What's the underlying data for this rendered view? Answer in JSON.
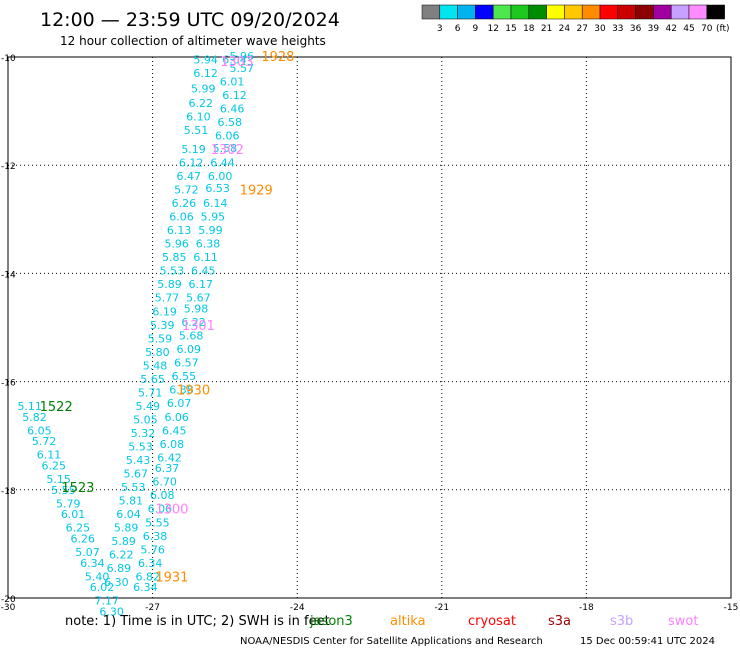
{
  "header": {
    "title": "12:00 — 23:59 UTC 09/20/2024",
    "subtitle": "12 hour collection of altimeter wave heights"
  },
  "legend_scale": {
    "labels": [
      "3",
      "6",
      "9",
      "12",
      "15",
      "18",
      "21",
      "24",
      "27",
      "30",
      "33",
      "36",
      "39",
      "42",
      "45",
      "70"
    ],
    "unit": "(ft)",
    "colors": [
      "#808080",
      "#00e5ee",
      "#00b2ee",
      "#0000ff",
      "#4ee84e",
      "#1ec81e",
      "#008c00",
      "#ffff00",
      "#ffc800",
      "#ff8c00",
      "#ff0000",
      "#c80000",
      "#8c0000",
      "#a000a0",
      "#c8a0ff",
      "#ff8cff",
      "#000000"
    ]
  },
  "footer": {
    "note": "note:  1) Time is in UTC; 2) SWH is in feet",
    "credit": "NOAA/NESDIS Center for Satellite Applications and Research",
    "timestamp": "15 Dec 00:59:41 UTC 2024"
  },
  "satellites": [
    {
      "name": "jason3",
      "color": "#008000"
    },
    {
      "name": "altika",
      "color": "#ff8c00"
    },
    {
      "name": "cryosat",
      "color": "#ff0000"
    },
    {
      "name": "s3a",
      "color": "#a00000"
    },
    {
      "name": "s3b",
      "color": "#c8a0ff"
    },
    {
      "name": "swot",
      "color": "#ff80ff"
    }
  ],
  "chart_data": {
    "type": "scatter",
    "xlim": [
      -30,
      -15
    ],
    "ylim": [
      -20,
      -10
    ],
    "x_ticks": [
      "-30",
      "-27",
      "-24",
      "-21",
      "-18",
      "-15"
    ],
    "y_ticks": [
      "-10",
      "-12",
      "-14",
      "-16",
      "-18",
      "-20"
    ],
    "grid": true,
    "value_color": "#00c8e6",
    "values": [
      {
        "x": -25.9,
        "y": -10.05,
        "v": "5.94"
      },
      {
        "x": -25.15,
        "y": -9.98,
        "v": "5.96"
      },
      {
        "x": -25.3,
        "y": -10.05,
        "v": "6.04"
      },
      {
        "x": -25.15,
        "y": -10.2,
        "v": "5.57"
      },
      {
        "x": -25.9,
        "y": -10.3,
        "v": "6.12"
      },
      {
        "x": -25.35,
        "y": -10.45,
        "v": "6.01"
      },
      {
        "x": -25.95,
        "y": -10.58,
        "v": "5.99"
      },
      {
        "x": -25.3,
        "y": -10.7,
        "v": "6.12"
      },
      {
        "x": -26.0,
        "y": -10.85,
        "v": "6.22"
      },
      {
        "x": -25.35,
        "y": -10.95,
        "v": "6.46"
      },
      {
        "x": -26.05,
        "y": -11.1,
        "v": "6.10"
      },
      {
        "x": -25.4,
        "y": -11.2,
        "v": "6.58"
      },
      {
        "x": -26.1,
        "y": -11.35,
        "v": "5.51"
      },
      {
        "x": -25.45,
        "y": -11.45,
        "v": "6.06"
      },
      {
        "x": -25.5,
        "y": -11.68,
        "v": "5.58"
      },
      {
        "x": -26.15,
        "y": -11.7,
        "v": "5.19"
      },
      {
        "x": -26.2,
        "y": -11.95,
        "v": "6.12"
      },
      {
        "x": -25.55,
        "y": -11.95,
        "v": "6.44"
      },
      {
        "x": -25.6,
        "y": -12.2,
        "v": "6.00"
      },
      {
        "x": -26.25,
        "y": -12.2,
        "v": "6.47"
      },
      {
        "x": -26.3,
        "y": -12.45,
        "v": "5.72"
      },
      {
        "x": -25.65,
        "y": -12.42,
        "v": "6.53"
      },
      {
        "x": -26.35,
        "y": -12.7,
        "v": "6.26"
      },
      {
        "x": -25.7,
        "y": -12.7,
        "v": "6.14"
      },
      {
        "x": -26.4,
        "y": -12.95,
        "v": "6.06"
      },
      {
        "x": -25.75,
        "y": -12.95,
        "v": "5.95"
      },
      {
        "x": -26.45,
        "y": -13.2,
        "v": "6.13"
      },
      {
        "x": -25.8,
        "y": -13.2,
        "v": "5.99"
      },
      {
        "x": -26.5,
        "y": -13.45,
        "v": "5.96"
      },
      {
        "x": -25.85,
        "y": -13.45,
        "v": "6.38"
      },
      {
        "x": -26.55,
        "y": -13.7,
        "v": "5.85"
      },
      {
        "x": -25.9,
        "y": -13.7,
        "v": "6.11"
      },
      {
        "x": -26.6,
        "y": -13.95,
        "v": "5.53"
      },
      {
        "x": -25.95,
        "y": -13.95,
        "v": "6.45"
      },
      {
        "x": -26.65,
        "y": -14.2,
        "v": "5.89"
      },
      {
        "x": -26.0,
        "y": -14.2,
        "v": "6.17"
      },
      {
        "x": -26.7,
        "y": -14.45,
        "v": "5.77"
      },
      {
        "x": -26.05,
        "y": -14.45,
        "v": "5.67"
      },
      {
        "x": -26.75,
        "y": -14.7,
        "v": "6.19"
      },
      {
        "x": -26.1,
        "y": -14.65,
        "v": "5.98"
      },
      {
        "x": -26.8,
        "y": -14.95,
        "v": "5.39"
      },
      {
        "x": -26.15,
        "y": -14.9,
        "v": "6.22"
      },
      {
        "x": -26.2,
        "y": -15.15,
        "v": "5.68"
      },
      {
        "x": -26.85,
        "y": -15.2,
        "v": "5.59"
      },
      {
        "x": -26.9,
        "y": -15.45,
        "v": "5.80"
      },
      {
        "x": -26.25,
        "y": -15.4,
        "v": "6.09"
      },
      {
        "x": -26.3,
        "y": -15.65,
        "v": "6.57"
      },
      {
        "x": -26.95,
        "y": -15.7,
        "v": "5.48"
      },
      {
        "x": -27.0,
        "y": -15.95,
        "v": "5.65"
      },
      {
        "x": -26.35,
        "y": -15.9,
        "v": "6.55"
      },
      {
        "x": -26.4,
        "y": -16.15,
        "v": "6.38"
      },
      {
        "x": -27.05,
        "y": -16.2,
        "v": "5.71"
      },
      {
        "x": -26.45,
        "y": -16.4,
        "v": "6.07"
      },
      {
        "x": -27.1,
        "y": -16.45,
        "v": "5.49"
      },
      {
        "x": -26.5,
        "y": -16.65,
        "v": "6.06"
      },
      {
        "x": -27.15,
        "y": -16.7,
        "v": "5.05"
      },
      {
        "x": -26.55,
        "y": -16.9,
        "v": "6.45"
      },
      {
        "x": -27.2,
        "y": -16.95,
        "v": "5.32"
      },
      {
        "x": -26.6,
        "y": -17.15,
        "v": "6.08"
      },
      {
        "x": -27.25,
        "y": -17.2,
        "v": "5.53"
      },
      {
        "x": -26.65,
        "y": -17.4,
        "v": "6.42"
      },
      {
        "x": -27.3,
        "y": -17.45,
        "v": "5.43"
      },
      {
        "x": -26.7,
        "y": -17.6,
        "v": "6.37"
      },
      {
        "x": -27.35,
        "y": -17.7,
        "v": "5.67"
      },
      {
        "x": -26.75,
        "y": -17.85,
        "v": "6.70"
      },
      {
        "x": -27.4,
        "y": -17.95,
        "v": "5.53"
      },
      {
        "x": -26.8,
        "y": -18.1,
        "v": "6.08"
      },
      {
        "x": -27.45,
        "y": -18.2,
        "v": "5.81"
      },
      {
        "x": -26.85,
        "y": -18.35,
        "v": "6.06"
      },
      {
        "x": -27.5,
        "y": -18.45,
        "v": "6.04"
      },
      {
        "x": -26.9,
        "y": -18.6,
        "v": "5.55"
      },
      {
        "x": -27.55,
        "y": -18.7,
        "v": "5.89"
      },
      {
        "x": -26.95,
        "y": -18.85,
        "v": "6.38"
      },
      {
        "x": -27.6,
        "y": -18.95,
        "v": "5.89"
      },
      {
        "x": -27.0,
        "y": -19.1,
        "v": "5.76"
      },
      {
        "x": -27.65,
        "y": -19.2,
        "v": "6.22"
      },
      {
        "x": -27.05,
        "y": -19.35,
        "v": "6.34"
      },
      {
        "x": -27.7,
        "y": -19.45,
        "v": "6.89"
      },
      {
        "x": -27.1,
        "y": -19.6,
        "v": "6.82"
      },
      {
        "x": -27.75,
        "y": -19.7,
        "v": "6.30"
      },
      {
        "x": -27.15,
        "y": -19.8,
        "v": "6.34"
      },
      {
        "x": -29.55,
        "y": -16.45,
        "v": "5.11"
      },
      {
        "x": -29.45,
        "y": -16.65,
        "v": "5.82"
      },
      {
        "x": -29.35,
        "y": -16.9,
        "v": "6.05"
      },
      {
        "x": -29.25,
        "y": -17.1,
        "v": "5.72"
      },
      {
        "x": -29.15,
        "y": -17.35,
        "v": "6.11"
      },
      {
        "x": -29.05,
        "y": -17.55,
        "v": "6.25"
      },
      {
        "x": -28.95,
        "y": -17.8,
        "v": "5.15"
      },
      {
        "x": -28.85,
        "y": -18.0,
        "v": "5.55"
      },
      {
        "x": -28.75,
        "y": -18.25,
        "v": "5.79"
      },
      {
        "x": -28.65,
        "y": -18.45,
        "v": "6.01"
      },
      {
        "x": -28.55,
        "y": -18.7,
        "v": "6.25"
      },
      {
        "x": -28.45,
        "y": -18.9,
        "v": "6.26"
      },
      {
        "x": -28.35,
        "y": -19.15,
        "v": "5.07"
      },
      {
        "x": -28.25,
        "y": -19.35,
        "v": "6.34"
      },
      {
        "x": -28.15,
        "y": -19.6,
        "v": "5.40"
      },
      {
        "x": -28.05,
        "y": -19.8,
        "v": "6.02"
      },
      {
        "x": -27.95,
        "y": -20.05,
        "v": "7.17"
      },
      {
        "x": -27.85,
        "y": -20.25,
        "v": "6.30"
      }
    ],
    "pass_labels": [
      {
        "x": -24.4,
        "y": -9.98,
        "text": "1928",
        "sat": "altika"
      },
      {
        "x": -25.25,
        "y": -10.07,
        "text": "1303",
        "sat": "swot"
      },
      {
        "x": -25.45,
        "y": -11.7,
        "text": "1302",
        "sat": "swot"
      },
      {
        "x": -24.85,
        "y": -12.45,
        "text": "1929",
        "sat": "altika"
      },
      {
        "x": -26.05,
        "y": -14.95,
        "text": "1301",
        "sat": "swot"
      },
      {
        "x": -26.15,
        "y": -16.15,
        "text": "1930",
        "sat": "altika"
      },
      {
        "x": -29.0,
        "y": -16.45,
        "text": "1522",
        "sat": "jason3"
      },
      {
        "x": -28.55,
        "y": -17.95,
        "text": "1523",
        "sat": "jason3"
      },
      {
        "x": -26.6,
        "y": -18.35,
        "text": "1300",
        "sat": "swot"
      },
      {
        "x": -26.6,
        "y": -19.6,
        "text": "1931",
        "sat": "altika"
      }
    ]
  }
}
